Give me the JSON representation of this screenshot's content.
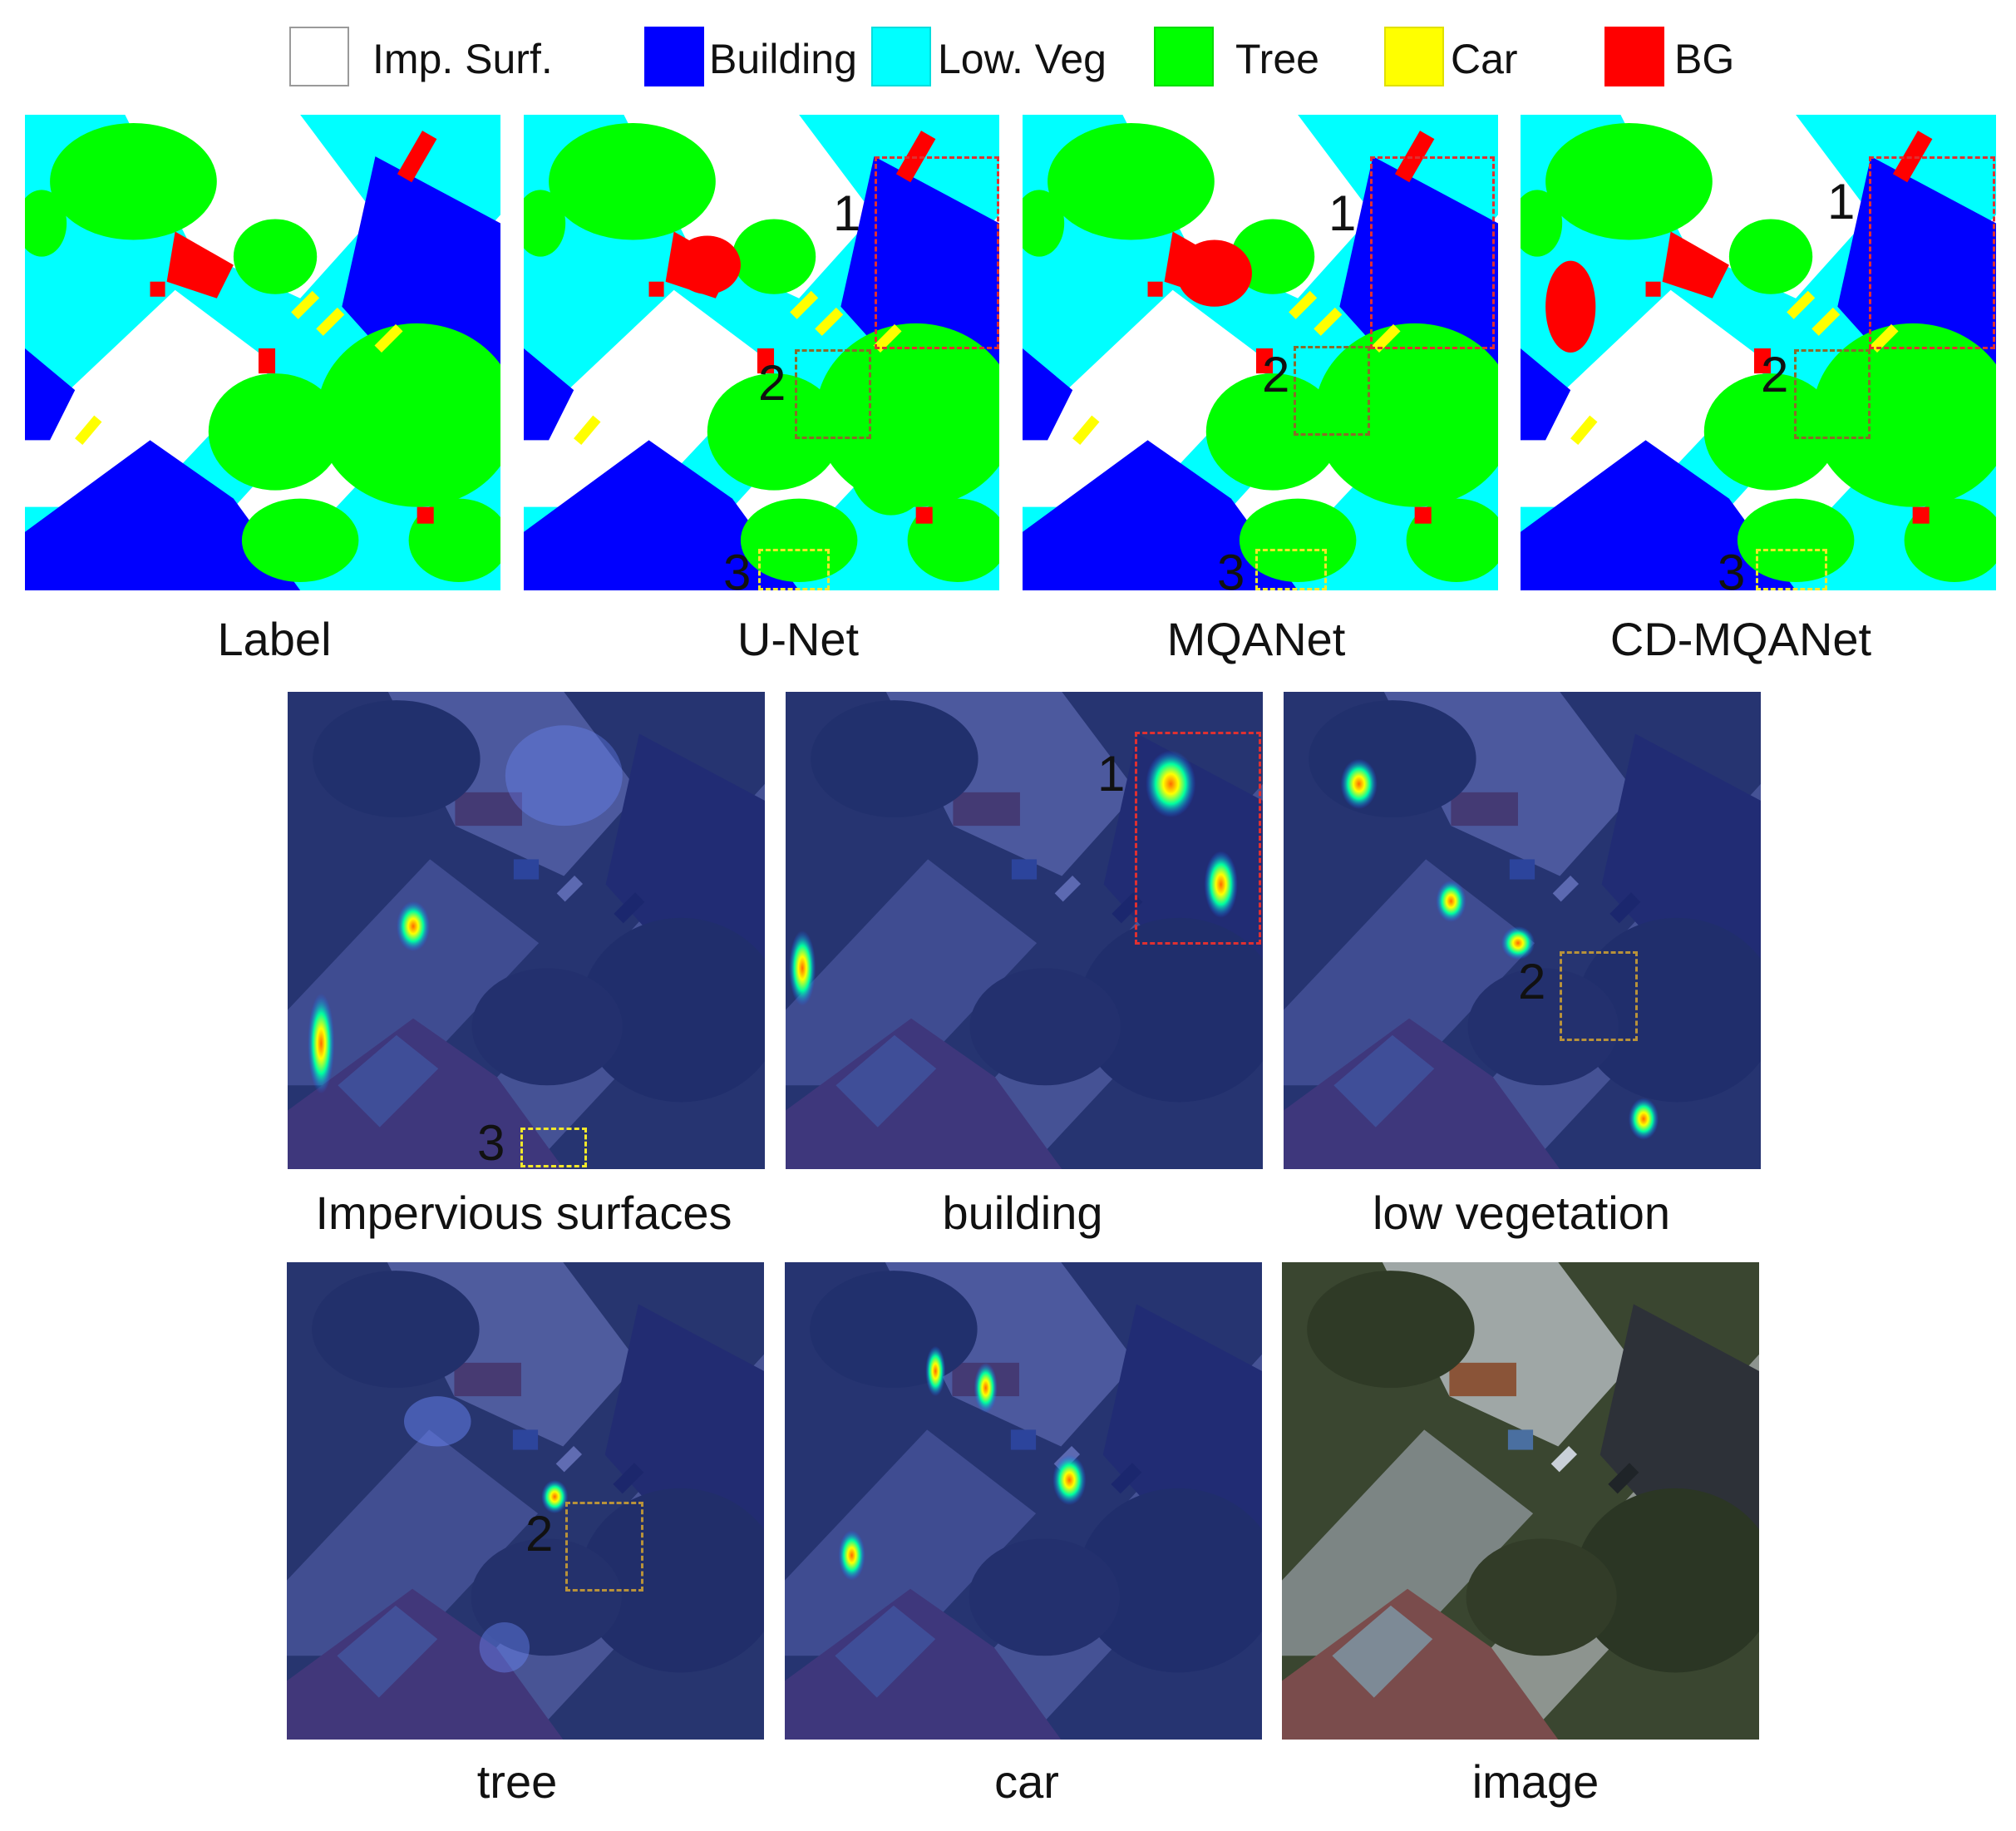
{
  "legend": [
    {
      "label": "Imp. Surf.",
      "color": "#ffffff"
    },
    {
      "label": "Building",
      "color": "#0000ff"
    },
    {
      "label": "Low. Veg",
      "color": "#00ffff"
    },
    {
      "label": "Tree",
      "color": "#00ff00"
    },
    {
      "label": "Car",
      "color": "#ffff00"
    },
    {
      "label": "BG",
      "color": "#ff0000"
    }
  ],
  "segmentation": {
    "label": "Label",
    "unet": "U-Net",
    "mqanet": "MQANet",
    "cdmqanet": "CD-MQANet"
  },
  "heatmaps": {
    "impervious": "Impervious surfaces",
    "building": "building",
    "lowveg": "low vegetation",
    "tree": "tree",
    "car": "car",
    "image": "image"
  },
  "region_numbers": {
    "one": "1",
    "two": "2",
    "three": "3"
  },
  "box_colors": {
    "one": "#e03030",
    "two": "#b8923a",
    "three": "#f2e82a"
  }
}
